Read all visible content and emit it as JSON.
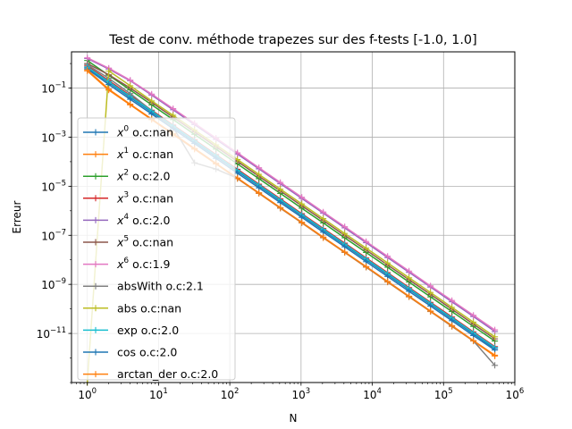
{
  "chart_data": {
    "type": "line",
    "title": "Test de conv. méthode trapezes sur des f-tests [-1.0, 1.0]",
    "xlabel": "N",
    "ylabel": "Erreur",
    "xscale": "log",
    "yscale": "log",
    "xlim": [
      0.6,
      1000000
    ],
    "ylim": [
      1e-13,
      3
    ],
    "grid": true,
    "legend_position": "left",
    "x_ticks": [
      {
        "value": 1,
        "base": "10",
        "exp": "0"
      },
      {
        "value": 10,
        "base": "10",
        "exp": "1"
      },
      {
        "value": 100,
        "base": "10",
        "exp": "2"
      },
      {
        "value": 1000,
        "base": "10",
        "exp": "3"
      },
      {
        "value": 10000,
        "base": "10",
        "exp": "4"
      },
      {
        "value": 100000,
        "base": "10",
        "exp": "5"
      },
      {
        "value": 1000000,
        "base": "10",
        "exp": "6"
      }
    ],
    "y_ticks": [
      {
        "value": 1e-11,
        "base": "10",
        "exp": "−11"
      },
      {
        "value": 1e-09,
        "base": "10",
        "exp": "−9"
      },
      {
        "value": 1e-07,
        "base": "10",
        "exp": "−7"
      },
      {
        "value": 1e-05,
        "base": "10",
        "exp": "−5"
      },
      {
        "value": 0.001,
        "base": "10",
        "exp": "−3"
      },
      {
        "value": 0.1,
        "base": "10",
        "exp": "−1"
      }
    ],
    "x": [
      1,
      2,
      4,
      8,
      16,
      32,
      64,
      128,
      256,
      512,
      1024,
      2048,
      4096,
      8192,
      16384,
      32768,
      65536,
      131072,
      262144,
      524288
    ],
    "series": [
      {
        "name_base": "x",
        "name_sup": "0",
        "name_rest": " o.c:nan",
        "color": "#1f77b4",
        "values": [
          0.67,
          0.167,
          0.0417,
          0.0104,
          0.0026,
          0.00065,
          0.000163,
          4.07e-05,
          1.02e-05,
          2.54e-06,
          6.36e-07,
          1.59e-07,
          3.97e-08,
          9.93e-09,
          2.48e-09,
          6.2e-10,
          1.55e-10,
          3.88e-11,
          9.7e-12,
          2.4e-12
        ]
      },
      {
        "name_base": "x",
        "name_sup": "1",
        "name_rest": " o.c:nan",
        "color": "#ff7f0e",
        "values": [
          0.5,
          0.083,
          0.0208,
          0.0052,
          0.0013,
          0.000325,
          8.1e-05,
          2.03e-05,
          5.1e-06,
          1.27e-06,
          3.2e-07,
          7.9e-08,
          2e-08,
          5e-09,
          1.24e-09,
          3.1e-10,
          7.8e-11,
          1.94e-11,
          4.9e-12,
          1.2e-12
        ]
      },
      {
        "name_base": "x",
        "name_sup": "2",
        "name_rest": " o.c:2.0",
        "color": "#2ca02c",
        "values": [
          1.33,
          0.333,
          0.0833,
          0.0208,
          0.0052,
          0.0013,
          0.000326,
          8.1e-05,
          2.03e-05,
          5.1e-06,
          1.27e-06,
          3.2e-07,
          7.9e-08,
          2e-08,
          5e-09,
          1.24e-09,
          3.1e-10,
          7.8e-11,
          1.94e-11,
          4.9e-12
        ]
      },
      {
        "name_base": "x",
        "name_sup": "3",
        "name_rest": " o.c:nan",
        "color": "#d62728",
        "values": [
          0.8,
          0.2,
          0.05,
          0.0125,
          0.0031,
          0.00078,
          0.000195,
          4.9e-05,
          1.22e-05,
          3.05e-06,
          7.6e-07,
          1.9e-07,
          4.8e-08,
          1.19e-08,
          3e-09,
          7.4e-10,
          1.86e-10,
          4.7e-11,
          1.16e-11,
          2.9e-12
        ]
      },
      {
        "name_base": "x",
        "name_sup": "4",
        "name_rest": " o.c:2.0",
        "color": "#9467bd",
        "values": [
          1.6,
          0.6,
          0.2,
          0.052,
          0.013,
          0.00326,
          0.000815,
          0.000204,
          5.1e-05,
          1.27e-05,
          3.2e-06,
          8e-07,
          2e-07,
          5e-08,
          1.24e-08,
          3.1e-09,
          7.8e-10,
          1.94e-10,
          4.9e-11,
          1.2e-11
        ]
      },
      {
        "name_base": "x",
        "name_sup": "5",
        "name_rest": " o.c:nan",
        "color": "#8c564b",
        "values": [
          1.0,
          0.35,
          0.1,
          0.026,
          0.0065,
          0.00163,
          0.000407,
          0.000102,
          2.54e-05,
          6.4e-06,
          1.59e-06,
          4e-07,
          9.9e-08,
          2.5e-08,
          6.2e-09,
          1.55e-09,
          3.9e-10,
          9.7e-11,
          2.4e-11,
          6e-12
        ]
      },
      {
        "name_base": "x",
        "name_sup": "6",
        "name_rest": " o.c:1.9",
        "color": "#e377c2",
        "values": [
          1.71,
          0.65,
          0.21,
          0.057,
          0.0145,
          0.00365,
          0.000915,
          0.000229,
          5.7e-05,
          1.43e-05,
          3.58e-06,
          8.9e-07,
          2.24e-07,
          5.6e-08,
          1.4e-08,
          3.5e-09,
          8.7e-10,
          2.2e-10,
          5.5e-11,
          1.4e-11
        ]
      },
      {
        "name_base": "absWith",
        "name_sup": "",
        "name_rest": " o.c:2.1",
        "color": "#7f7f7f",
        "values": [
          0.9,
          0.25,
          0.06,
          0.012,
          0.0025,
          9e-05,
          5e-05,
          2.1e-05,
          5.3e-06,
          1.3e-06,
          3.3e-07,
          8.2e-08,
          2.05e-08,
          5.1e-09,
          1.28e-09,
          3.2e-10,
          8e-11,
          2e-11,
          5e-12,
          5e-13
        ]
      },
      {
        "name_base": "abs",
        "name_sup": "",
        "name_rest": " o.c:nan",
        "color": "#bcbd22",
        "values": [
          1e-14,
          0.5,
          0.125,
          0.03,
          0.0078,
          0.00195,
          0.000488,
          0.000122,
          3.05e-05,
          7.6e-06,
          1.9e-06,
          4.8e-07,
          1.19e-07,
          3e-08,
          7.5e-09,
          1.86e-09,
          4.7e-10,
          1.16e-10,
          2.9e-11,
          7.3e-12
        ]
      },
      {
        "name_base": "exp",
        "name_sup": "",
        "name_rest": " o.c:2.0",
        "color": "#17becf",
        "values": [
          0.73,
          0.18,
          0.046,
          0.0115,
          0.00287,
          0.00072,
          0.00018,
          4.5e-05,
          1.12e-05,
          2.8e-06,
          7e-07,
          1.75e-07,
          4.4e-08,
          1.1e-08,
          2.74e-09,
          6.8e-10,
          1.71e-10,
          4.3e-11,
          1.07e-11,
          2.7e-12
        ]
      },
      {
        "name_base": "cos",
        "name_sup": "",
        "name_rest": " o.c:2.0",
        "color": "#1f77b4",
        "values": [
          0.6,
          0.14,
          0.035,
          0.0088,
          0.0022,
          0.00055,
          0.000137,
          3.4e-05,
          8.6e-06,
          2.15e-06,
          5.4e-07,
          1.34e-07,
          3.4e-08,
          8.4e-09,
          2.1e-09,
          5.2e-10,
          1.31e-10,
          3.3e-11,
          8.2e-12,
          2.1e-12
        ]
      },
      {
        "name_base": "arctan_der",
        "name_sup": "",
        "name_rest": " o.c:2.0",
        "color": "#ff7f0e",
        "values": [
          0.55,
          0.09,
          0.022,
          0.0055,
          0.00138,
          0.000345,
          8.6e-05,
          2.16e-05,
          5.4e-06,
          1.35e-06,
          3.4e-07,
          8.4e-08,
          2.1e-08,
          5.3e-09,
          1.32e-09,
          3.3e-10,
          8.2e-11,
          2.1e-11,
          5.1e-12,
          1.3e-12
        ]
      }
    ]
  }
}
